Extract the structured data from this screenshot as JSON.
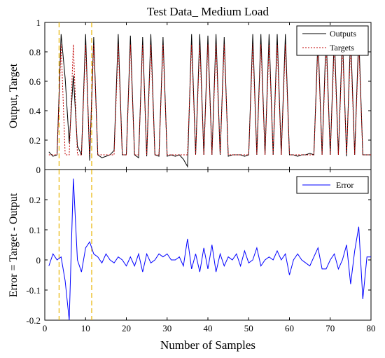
{
  "chart_data": [
    {
      "type": "line",
      "title": "Test Data_ Medium Load",
      "xlabel": "",
      "ylabel": "Output, Target",
      "xlim": [
        0,
        80
      ],
      "ylim": [
        0,
        1
      ],
      "yticks": [
        "0",
        "0.2",
        "0.4",
        "0.6",
        "0.8",
        "1"
      ],
      "grid": false,
      "legend_position": "top-right",
      "x": [
        1,
        2,
        3,
        4,
        5,
        6,
        7,
        8,
        9,
        10,
        11,
        12,
        13,
        14,
        15,
        16,
        17,
        18,
        19,
        20,
        21,
        22,
        23,
        24,
        25,
        26,
        27,
        28,
        29,
        30,
        31,
        32,
        33,
        34,
        35,
        36,
        37,
        38,
        39,
        40,
        41,
        42,
        43,
        44,
        45,
        46,
        47,
        48,
        49,
        50,
        51,
        52,
        53,
        54,
        55,
        56,
        57,
        58,
        59,
        60,
        61,
        62,
        63,
        64,
        65,
        66,
        67,
        68,
        69,
        70,
        71,
        72,
        73,
        74,
        75,
        76,
        77,
        78,
        79,
        80
      ],
      "series": [
        {
          "name": "Outputs",
          "color": "#000000",
          "style": "solid",
          "values": [
            0.12,
            0.09,
            0.1,
            0.92,
            0.62,
            0.18,
            0.64,
            0.16,
            0.1,
            0.92,
            0.06,
            0.9,
            0.1,
            0.08,
            0.09,
            0.1,
            0.13,
            0.92,
            0.1,
            0.1,
            0.91,
            0.1,
            0.08,
            0.9,
            0.09,
            0.92,
            0.1,
            0.09,
            0.9,
            0.09,
            0.1,
            0.09,
            0.1,
            0.07,
            0.02,
            0.92,
            0.1,
            0.92,
            0.1,
            0.91,
            0.1,
            0.92,
            0.1,
            0.9,
            0.09,
            0.1,
            0.1,
            0.1,
            0.09,
            0.1,
            0.92,
            0.1,
            0.92,
            0.1,
            0.92,
            0.1,
            0.92,
            0.1,
            0.92,
            0.1,
            0.1,
            0.09,
            0.1,
            0.1,
            0.11,
            0.1,
            0.9,
            0.1,
            0.92,
            0.1,
            0.92,
            0.1,
            0.91,
            0.09,
            0.92,
            0.1,
            0.92,
            0.1,
            0.1,
            0.1
          ]
        },
        {
          "name": "Targets",
          "color": "#c00000",
          "style": "dotted",
          "values": [
            0.1,
            0.1,
            0.1,
            0.85,
            0.1,
            0.1,
            0.85,
            0.1,
            0.1,
            0.85,
            0.1,
            0.85,
            0.1,
            0.1,
            0.1,
            0.1,
            0.1,
            0.85,
            0.1,
            0.1,
            0.85,
            0.1,
            0.1,
            0.85,
            0.1,
            0.85,
            0.1,
            0.1,
            0.85,
            0.1,
            0.1,
            0.1,
            0.1,
            0.1,
            0.1,
            0.85,
            0.1,
            0.85,
            0.1,
            0.85,
            0.1,
            0.85,
            0.1,
            0.85,
            0.1,
            0.1,
            0.1,
            0.1,
            0.1,
            0.1,
            0.85,
            0.1,
            0.85,
            0.1,
            0.85,
            0.1,
            0.85,
            0.1,
            0.85,
            0.1,
            0.1,
            0.1,
            0.1,
            0.1,
            0.1,
            0.1,
            0.85,
            0.1,
            0.85,
            0.1,
            0.85,
            0.1,
            0.85,
            0.1,
            0.85,
            0.1,
            0.85,
            0.1,
            0.1,
            0.1
          ]
        }
      ],
      "vlines": [
        3.5,
        11.5
      ]
    },
    {
      "type": "line",
      "title": "",
      "xlabel": "Number of Samples",
      "ylabel": "Error = Target - Output",
      "xlim": [
        0,
        80
      ],
      "ylim": [
        -0.2,
        0.3
      ],
      "yticks": [
        "-0.2",
        "-0.1",
        "0",
        "0.1",
        "0.2"
      ],
      "xticks": [
        "0",
        "10",
        "20",
        "30",
        "40",
        "50",
        "60",
        "70",
        "80"
      ],
      "grid": false,
      "legend_position": "top-right",
      "x": [
        1,
        2,
        3,
        4,
        5,
        6,
        7,
        8,
        9,
        10,
        11,
        12,
        13,
        14,
        15,
        16,
        17,
        18,
        19,
        20,
        21,
        22,
        23,
        24,
        25,
        26,
        27,
        28,
        29,
        30,
        31,
        32,
        33,
        34,
        35,
        36,
        37,
        38,
        39,
        40,
        41,
        42,
        43,
        44,
        45,
        46,
        47,
        48,
        49,
        50,
        51,
        52,
        53,
        54,
        55,
        56,
        57,
        58,
        59,
        60,
        61,
        62,
        63,
        64,
        65,
        66,
        67,
        68,
        69,
        70,
        71,
        72,
        73,
        74,
        75,
        76,
        77,
        78,
        79,
        80
      ],
      "series": [
        {
          "name": "Error",
          "color": "#0000ff",
          "style": "solid",
          "values": [
            -0.02,
            0.02,
            0.0,
            0.01,
            -0.07,
            -0.2,
            0.27,
            0.0,
            -0.04,
            0.04,
            0.06,
            0.02,
            0.01,
            -0.01,
            0.02,
            0.0,
            -0.01,
            0.01,
            0.0,
            -0.02,
            0.01,
            -0.02,
            0.02,
            -0.04,
            0.02,
            -0.01,
            0.0,
            0.02,
            0.01,
            0.02,
            0.0,
            0.0,
            0.01,
            -0.02,
            0.07,
            -0.03,
            0.02,
            -0.04,
            0.04,
            -0.03,
            0.05,
            -0.04,
            0.02,
            -0.02,
            0.01,
            0.0,
            0.02,
            -0.02,
            0.03,
            -0.01,
            0.0,
            0.04,
            -0.02,
            0.0,
            0.01,
            0.0,
            0.03,
            0.0,
            0.02,
            -0.05,
            0.0,
            0.02,
            0.0,
            -0.01,
            -0.02,
            0.01,
            0.04,
            -0.03,
            -0.03,
            0.0,
            0.02,
            -0.03,
            0.0,
            0.05,
            -0.08,
            0.03,
            0.11,
            -0.13,
            0.01,
            0.01
          ]
        }
      ],
      "vlines": [
        3.5,
        11.5
      ]
    }
  ]
}
